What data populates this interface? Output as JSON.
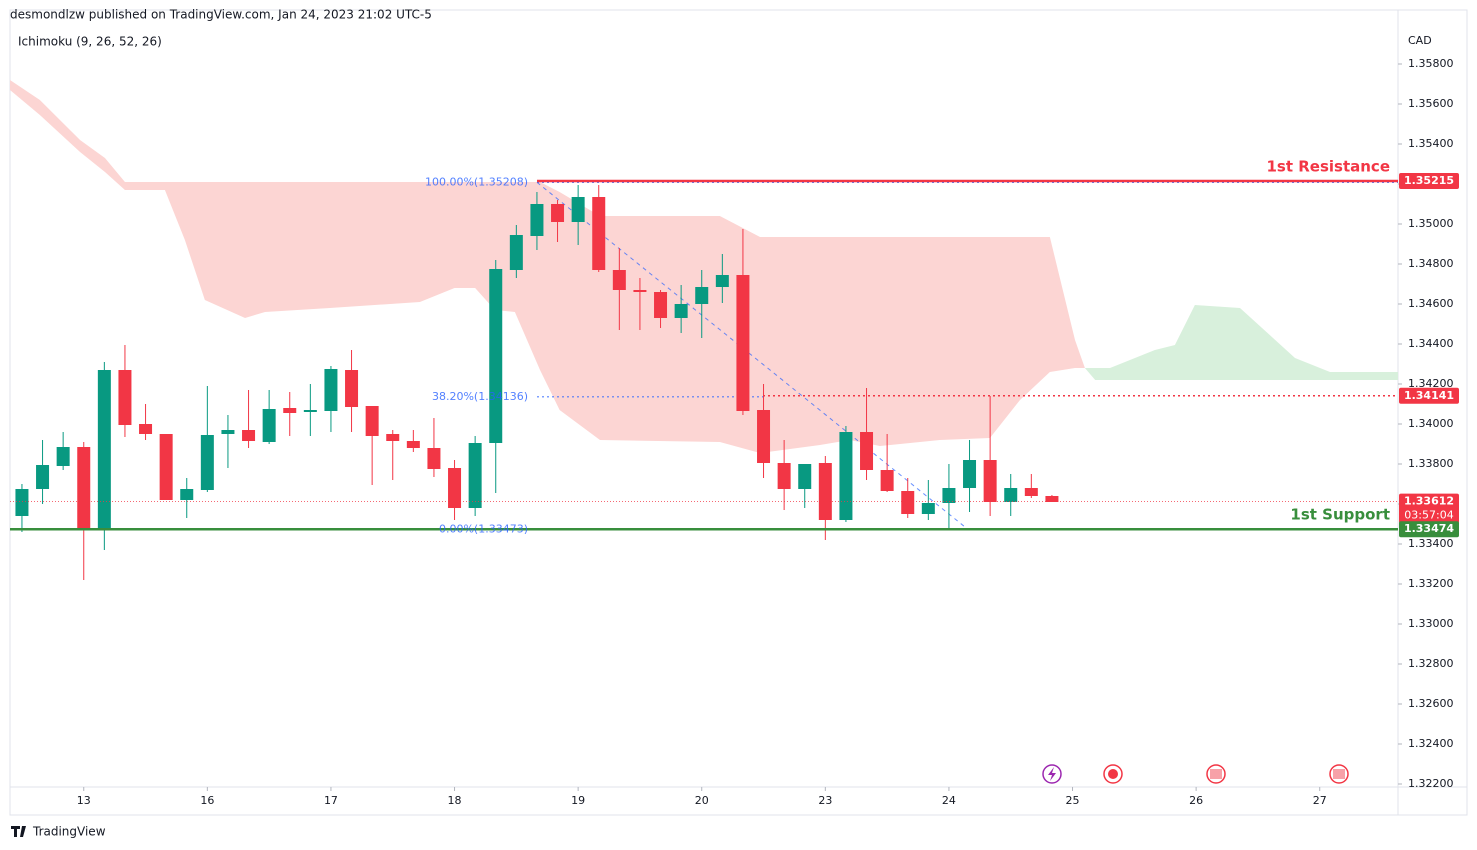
{
  "chart_data": {
    "type": "candlestick",
    "title": "desmondlzw published on TradingView.com, Jan 24, 2023 21:02 UTC-5",
    "subtitle": "Ichimoku (9, 26, 52, 26)",
    "y_label": "CAD",
    "footer": "TradingView",
    "up_color": "#089981",
    "down_color": "#f23645",
    "grid": false,
    "open": [
      1.3354,
      1.33675,
      1.3379,
      1.33885,
      1.3347,
      1.3427,
      1.34,
      1.3395,
      1.3362,
      1.3367,
      1.3395,
      1.3397,
      1.3391,
      1.3408,
      1.3406,
      1.34065,
      1.3427,
      1.3409,
      1.3395,
      1.33915,
      1.3388,
      1.3378,
      1.3358,
      1.33905,
      1.3477,
      1.3494,
      1.351,
      1.3501,
      1.35135,
      1.3477,
      1.3467,
      1.3466,
      1.3453,
      1.346,
      1.34685,
      1.34745,
      1.3407,
      1.33805,
      1.33675,
      1.33805,
      1.3352,
      1.3396,
      1.3377,
      1.33665,
      1.3355,
      1.33605,
      1.3368,
      1.3382,
      1.3361,
      1.3368,
      1.3364
    ],
    "high": [
      1.337,
      1.3392,
      1.3396,
      1.3391,
      1.3431,
      1.34395,
      1.341,
      1.3395,
      1.3373,
      1.3419,
      1.34045,
      1.3417,
      1.3417,
      1.3416,
      1.342,
      1.3429,
      1.3437,
      1.3409,
      1.3397,
      1.3397,
      1.3403,
      1.3382,
      1.3394,
      1.3482,
      1.34995,
      1.3516,
      1.3512,
      1.35195,
      1.35195,
      1.3488,
      1.3473,
      1.3467,
      1.34695,
      1.3477,
      1.3485,
      1.34975,
      1.342,
      1.3392,
      1.33795,
      1.3384,
      1.3399,
      1.3418,
      1.3395,
      1.3373,
      1.3372,
      1.338,
      1.3392,
      1.3414,
      1.3375,
      1.3375,
      1.33645
    ],
    "low": [
      1.3346,
      1.336,
      1.3377,
      1.3322,
      1.3337,
      1.33935,
      1.3392,
      1.3362,
      1.3353,
      1.3366,
      1.3378,
      1.3388,
      1.339,
      1.3394,
      1.3394,
      1.3396,
      1.3396,
      1.33695,
      1.3372,
      1.3386,
      1.33735,
      1.3352,
      1.3354,
      1.33655,
      1.3473,
      1.3487,
      1.3491,
      1.34895,
      1.3476,
      1.3447,
      1.3447,
      1.3448,
      1.34455,
      1.3443,
      1.34605,
      1.34045,
      1.3373,
      1.3357,
      1.3358,
      1.3342,
      1.3351,
      1.3372,
      1.3366,
      1.3353,
      1.3352,
      1.3348,
      1.3356,
      1.3354,
      1.3354,
      1.3363,
      1.3361
    ],
    "close": [
      1.33675,
      1.33795,
      1.33885,
      1.3347,
      1.3427,
      1.33995,
      1.3395,
      1.3362,
      1.33675,
      1.33945,
      1.3397,
      1.33915,
      1.34075,
      1.34055,
      1.3407,
      1.34275,
      1.34085,
      1.3394,
      1.33915,
      1.3388,
      1.33775,
      1.3358,
      1.33905,
      1.34775,
      1.34945,
      1.351,
      1.3501,
      1.35135,
      1.3477,
      1.3467,
      1.3466,
      1.3453,
      1.346,
      1.34685,
      1.34745,
      1.34065,
      1.33805,
      1.33675,
      1.338,
      1.3352,
      1.3396,
      1.3377,
      1.33665,
      1.3355,
      1.33605,
      1.3368,
      1.3382,
      1.3361,
      1.3368,
      1.3364,
      1.3361
    ],
    "xlim": [
      -0.58,
      66.8
    ],
    "xticks": [
      {
        "value": 3,
        "label": "13"
      },
      {
        "value": 9,
        "label": "16"
      },
      {
        "value": 15,
        "label": "17"
      },
      {
        "value": 21,
        "label": "18"
      },
      {
        "value": 27,
        "label": "19"
      },
      {
        "value": 33,
        "label": "20"
      },
      {
        "value": 39,
        "label": "23"
      },
      {
        "value": 45,
        "label": "24"
      },
      {
        "value": 51,
        "label": "25"
      },
      {
        "value": 57,
        "label": "26"
      },
      {
        "value": 63,
        "label": "27"
      }
    ],
    "ylim": [
      1.32185,
      1.3602
    ],
    "yticks": [
      {
        "value": 1.322,
        "label": "1.32200"
      },
      {
        "value": 1.324,
        "label": "1.32400"
      },
      {
        "value": 1.326,
        "label": "1.32600"
      },
      {
        "value": 1.328,
        "label": "1.32800"
      },
      {
        "value": 1.33,
        "label": "1.33000"
      },
      {
        "value": 1.332,
        "label": "1.33200"
      },
      {
        "value": 1.334,
        "label": "1.33400"
      },
      {
        "value": 1.336,
        "label": "1.33600"
      },
      {
        "value": 1.338,
        "label": "1.33800"
      },
      {
        "value": 1.34,
        "label": "1.34000"
      },
      {
        "value": 1.342,
        "label": "1.34200"
      },
      {
        "value": 1.344,
        "label": "1.34400"
      },
      {
        "value": 1.346,
        "label": "1.34600"
      },
      {
        "value": 1.348,
        "label": "1.34800"
      },
      {
        "value": 1.35,
        "label": "1.35000"
      },
      {
        "value": 1.352,
        "label": "1.35200"
      },
      {
        "value": 1.354,
        "label": "1.35400"
      },
      {
        "value": 1.356,
        "label": "1.35600"
      },
      {
        "value": 1.358,
        "label": "1.35800"
      }
    ],
    "cloud": [
      {
        "color": "#fcd5d3",
        "x": [
          -0.58,
          0.87,
          2.82,
          4.03,
          5.0,
          6.94,
          7.91,
          8.88,
          10.83,
          11.8,
          14.95,
          19.32,
          21.0,
          22.0,
          22.96,
          23.93,
          25.15,
          26.1,
          28.06,
          33.88,
          35.83,
          38.74,
          40.19,
          41.65,
          44.56,
          46.99,
          48.45,
          49.9,
          51.12,
          51.6
        ],
        "upper": [
          1.3572,
          1.3562,
          1.3542,
          1.3533,
          1.3521,
          1.3521,
          1.3521,
          1.3521,
          1.3521,
          1.3521,
          1.3521,
          1.3521,
          1.3521,
          1.3521,
          1.3521,
          1.3521,
          1.3521,
          1.3516,
          1.3504,
          1.3504,
          1.34935,
          1.34935,
          1.34935,
          1.34935,
          1.34935,
          1.34935,
          1.34935,
          1.34935,
          1.3442,
          1.3428
        ],
        "lower": [
          1.3567,
          1.35545,
          1.3536,
          1.3526,
          1.3517,
          1.3517,
          1.3492,
          1.3462,
          1.3453,
          1.3456,
          1.3458,
          1.3461,
          1.3468,
          1.3468,
          1.3457,
          1.3456,
          1.3427,
          1.3407,
          1.3392,
          1.3391,
          1.33855,
          1.33895,
          1.3392,
          1.3389,
          1.3392,
          1.3393,
          1.3412,
          1.3426,
          1.3428,
          1.3428
        ]
      },
      {
        "color": "#d8f0dc",
        "x": [
          50.97,
          51.6,
          52.1,
          52.82,
          55.0,
          55.97,
          56.94,
          59.13,
          61.8,
          63.5,
          66.8
        ],
        "upper": [
          1.3442,
          1.3428,
          1.3428,
          1.3428,
          1.3437,
          1.34395,
          1.34595,
          1.3458,
          1.3433,
          1.3426,
          1.3426
        ],
        "lower": [
          1.3442,
          1.3428,
          1.3422,
          1.3422,
          1.3422,
          1.3422,
          1.3422,
          1.3422,
          1.3422,
          1.3422,
          1.3422
        ]
      }
    ],
    "levels": [
      {
        "value": 1.35215,
        "name": "1st Resistance",
        "color": "#f23645",
        "style": "solid"
      },
      {
        "value": 1.34141,
        "color": "#f23645",
        "style": "dotted"
      },
      {
        "value": 1.33612,
        "color": "#f23645",
        "style": "dotted",
        "countdown": "03:57:04"
      },
      {
        "value": 1.33474,
        "name": "1st Support",
        "color": "#388e3c",
        "style": "solid"
      }
    ],
    "fib": [
      {
        "value": 1.35208,
        "label": "100.00%(1.35208)"
      },
      {
        "value": 1.34136,
        "label": "38.20%(1.34136)"
      },
      {
        "value": 1.33473,
        "label": "0.00%(1.33473)"
      }
    ],
    "fib_color": "#2962ff"
  }
}
